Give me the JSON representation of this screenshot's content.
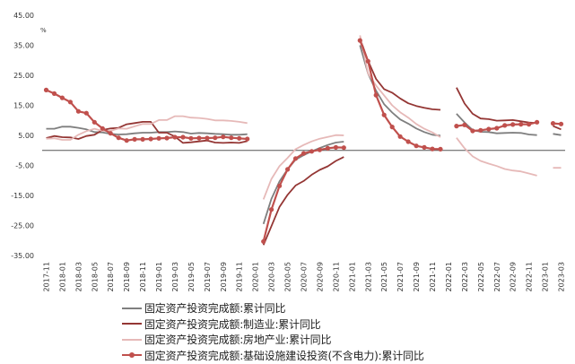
{
  "chart_data": {
    "type": "line",
    "unit": "%",
    "y_ticks": [
      "45.00",
      "35.00",
      "25.00",
      "15.00",
      "5.00",
      "-5.00",
      "-15.00",
      "-25.00",
      "-35.00"
    ],
    "ylim": [
      -35,
      45
    ],
    "grid": false,
    "legend_position": "bottom",
    "x": [
      "2017-11",
      "2017-12",
      "2018-01",
      "2018-02",
      "2018-03",
      "2018-04",
      "2018-05",
      "2018-06",
      "2018-07",
      "2018-08",
      "2018-09",
      "2018-10",
      "2018-11",
      "2018-12",
      "2019-01",
      "2019-02",
      "2019-03",
      "2019-04",
      "2019-05",
      "2019-06",
      "2019-07",
      "2019-08",
      "2019-09",
      "2019-10",
      "2019-11",
      "2019-12",
      "2020-01",
      "2020-02",
      "2020-03",
      "2020-04",
      "2020-05",
      "2020-06",
      "2020-07",
      "2020-08",
      "2020-09",
      "2020-10",
      "2020-11",
      "2020-12",
      "2021-01",
      "2021-02",
      "2021-03",
      "2021-04",
      "2021-05",
      "2021-06",
      "2021-07",
      "2021-08",
      "2021-09",
      "2021-10",
      "2021-11",
      "2021-12",
      "2022-01",
      "2022-02",
      "2022-03",
      "2022-04",
      "2022-05",
      "2022-06",
      "2022-07",
      "2022-08",
      "2022-09",
      "2022-10",
      "2022-11",
      "2022-12",
      "2023-01",
      "2023-02",
      "2023-03"
    ],
    "x_tick_labels": [
      "2017-11",
      "2018-01",
      "2018-03",
      "2018-05",
      "2018-07",
      "2018-09",
      "2018-11",
      "2019-01",
      "2019-03",
      "2019-05",
      "2019-07",
      "2019-09",
      "2019-11",
      "2020-01",
      "2020-03",
      "2020-05",
      "2020-07",
      "2020-09",
      "2020-11",
      "2021-01",
      "2021-03",
      "2021-05",
      "2021-07",
      "2021-09",
      "2021-11",
      "2022-01",
      "2022-03",
      "2022-05",
      "2022-07",
      "2022-09",
      "2022-11",
      "2023-01",
      "2023-03"
    ],
    "series": [
      {
        "name": "固定资产投资完成额:累计同比",
        "color": "#7f7f7f",
        "marker": false,
        "values": [
          7.2,
          7.2,
          7.9,
          7.9,
          7.5,
          7.0,
          6.1,
          6.0,
          5.5,
          5.3,
          5.4,
          5.7,
          5.9,
          5.9,
          6.1,
          6.1,
          6.3,
          6.1,
          5.6,
          5.8,
          5.7,
          5.5,
          5.4,
          5.2,
          5.2,
          5.4,
          null,
          -24.5,
          -16.1,
          -10.3,
          -6.3,
          -3.1,
          -1.6,
          -0.3,
          0.8,
          1.8,
          2.6,
          2.9,
          null,
          35.0,
          25.6,
          19.9,
          15.4,
          12.6,
          10.3,
          8.9,
          7.3,
          6.1,
          5.2,
          4.9,
          null,
          12.2,
          9.3,
          6.8,
          6.2,
          6.1,
          5.7,
          5.8,
          5.9,
          5.8,
          5.3,
          5.1,
          null,
          5.5,
          5.1
        ]
      },
      {
        "name": "固定资产投资完成额:制造业:累计同比",
        "color": "#943634",
        "marker": false,
        "values": [
          4.1,
          4.8,
          4.4,
          4.3,
          3.8,
          4.8,
          5.2,
          6.8,
          7.3,
          7.5,
          8.7,
          9.1,
          9.5,
          9.5,
          5.9,
          5.9,
          4.6,
          2.5,
          2.7,
          3.0,
          3.3,
          2.6,
          2.5,
          2.6,
          2.5,
          3.1,
          null,
          -31.5,
          -25.2,
          -18.8,
          -14.8,
          -11.7,
          -10.2,
          -8.1,
          -6.5,
          -5.3,
          -3.5,
          -2.2,
          null,
          37.3,
          29.8,
          23.8,
          20.4,
          19.2,
          17.3,
          15.7,
          14.8,
          14.2,
          13.7,
          13.5,
          null,
          20.9,
          15.6,
          12.2,
          10.6,
          10.4,
          9.9,
          10.0,
          10.1,
          9.7,
          9.3,
          9.1,
          null,
          8.1,
          7.0
        ]
      },
      {
        "name": "固定资产投资完成额:房地产业:累计同比",
        "color": "#e6b9b8",
        "marker": false,
        "values": [
          3.9,
          4.0,
          3.5,
          3.5,
          5.2,
          6.4,
          7.2,
          6.5,
          6.5,
          7.3,
          7.2,
          8.0,
          8.8,
          8.8,
          10.1,
          10.1,
          11.4,
          11.4,
          10.9,
          10.8,
          10.5,
          10.0,
          10.0,
          9.8,
          9.5,
          9.1,
          null,
          -16.3,
          -9.5,
          -5.2,
          -2.5,
          0.4,
          1.8,
          3.0,
          3.9,
          4.5,
          5.1,
          5.0,
          null,
          38.3,
          25.6,
          21.6,
          18.3,
          15.0,
          12.7,
          10.9,
          8.8,
          7.2,
          6.0,
          4.4,
          null,
          4.2,
          0.7,
          -2.0,
          -3.5,
          -4.4,
          -5.2,
          -6.2,
          -6.7,
          -7.0,
          -7.7,
          -8.4,
          null,
          -5.8,
          -5.8
        ]
      },
      {
        "name": "固定资产投资完成额:基础设施建设投资(不含电力):累计同比",
        "color": "#c0504d",
        "marker": true,
        "values": [
          20.1,
          18.9,
          17.5,
          16.1,
          13.0,
          12.4,
          9.4,
          7.3,
          5.7,
          4.2,
          3.3,
          3.7,
          3.7,
          3.8,
          4.0,
          4.1,
          4.4,
          4.4,
          4.0,
          4.1,
          4.1,
          4.2,
          4.5,
          4.2,
          4.0,
          3.8,
          null,
          -30.3,
          -19.7,
          -11.8,
          -6.3,
          -2.7,
          -1.0,
          -0.3,
          0.2,
          0.7,
          1.0,
          0.9,
          null,
          36.6,
          29.7,
          18.4,
          11.8,
          7.8,
          4.6,
          2.9,
          1.5,
          1.0,
          0.5,
          0.4,
          null,
          8.1,
          8.5,
          6.5,
          6.7,
          7.1,
          7.4,
          8.3,
          8.6,
          8.7,
          8.7,
          9.4,
          null,
          9.0,
          8.8
        ]
      }
    ]
  }
}
